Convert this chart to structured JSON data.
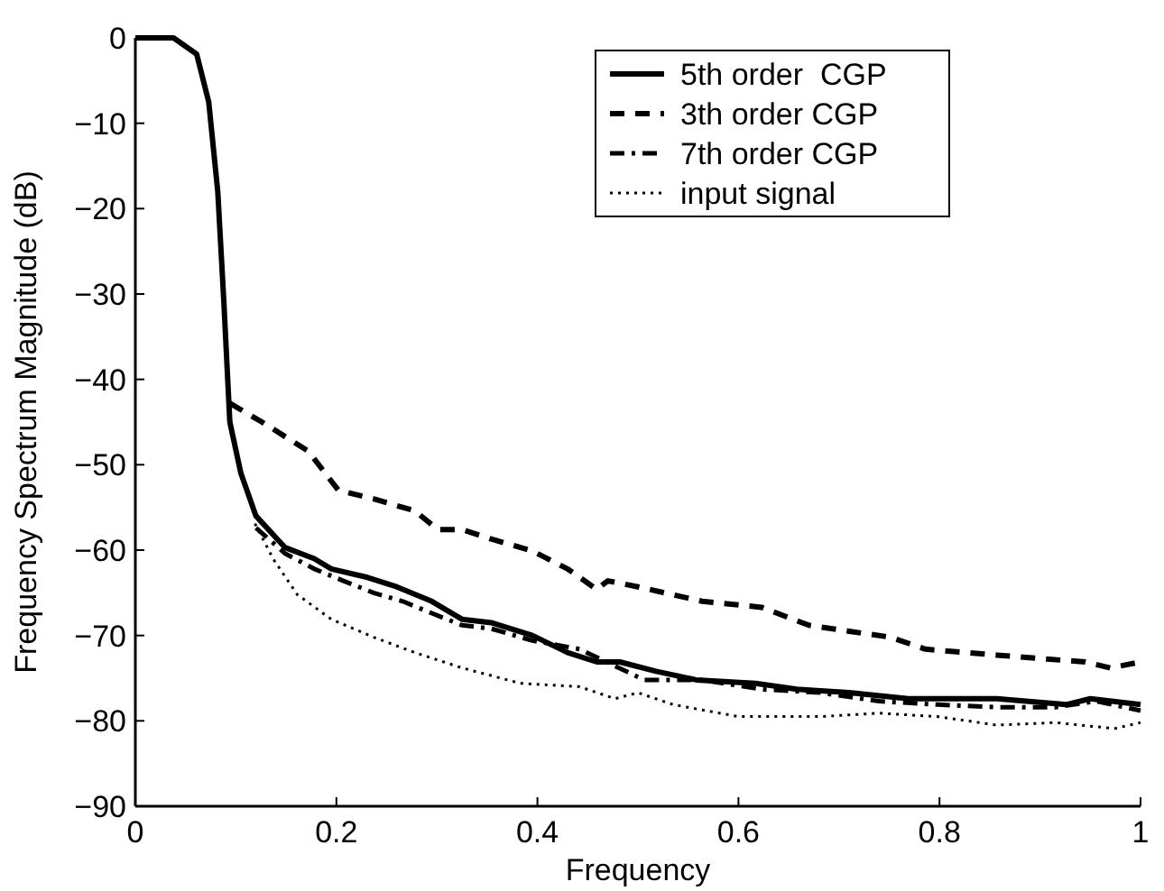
{
  "chart_data": {
    "type": "line",
    "xlabel": "Frequency",
    "ylabel": "Frequency Spectrum Magnitude (dB)",
    "xlim": [
      0,
      1
    ],
    "ylim": [
      -90,
      0
    ],
    "xticks": [
      0,
      0.2,
      0.4,
      0.6,
      0.8,
      1
    ],
    "yticks": [
      -90,
      -80,
      -70,
      -60,
      -50,
      -40,
      -30,
      -20,
      -10,
      0
    ],
    "grid": false,
    "legend": "top right",
    "series": [
      {
        "name": "5th order  CGP",
        "color": "#000000",
        "line_style": "solid",
        "x": [
          0,
          0.038,
          0.061,
          0.073,
          0.082,
          0.088,
          0.094,
          0.105,
          0.12,
          0.149,
          0.178,
          0.195,
          0.231,
          0.26,
          0.295,
          0.325,
          0.354,
          0.395,
          0.43,
          0.459,
          0.482,
          0.518,
          0.558,
          0.617,
          0.658,
          0.71,
          0.769,
          0.857,
          0.926,
          0.95,
          1
        ],
        "values": [
          0,
          0,
          -1.9,
          -7.5,
          -18,
          -30.8,
          -45,
          -51,
          -56,
          -59.7,
          -61,
          -62.2,
          -63.2,
          -64.3,
          -66,
          -68.1,
          -68.5,
          -70,
          -72,
          -73.1,
          -73.1,
          -74.2,
          -75.2,
          -75.6,
          -76.3,
          -76.7,
          -77.4,
          -77.4,
          -78.1,
          -77.4,
          -78.1
        ]
      },
      {
        "name": "3th order CGP",
        "color": "#000000",
        "line_style": "dashed",
        "x": [
          0.094,
          0.126,
          0.172,
          0.202,
          0.237,
          0.278,
          0.301,
          0.325,
          0.354,
          0.395,
          0.43,
          0.459,
          0.47,
          0.5,
          0.564,
          0.623,
          0.67,
          0.71,
          0.751,
          0.786,
          0.857,
          0.945,
          0.97,
          1
        ],
        "values": [
          -42.8,
          -45,
          -48.4,
          -53,
          -54,
          -55.4,
          -57.6,
          -57.6,
          -58.7,
          -60.1,
          -62.2,
          -64.6,
          -63.6,
          -64.3,
          -66,
          -66.7,
          -68.8,
          -69.5,
          -70.2,
          -71.6,
          -72.3,
          -73.1,
          -73.8,
          -73.1
        ]
      },
      {
        "name": "7th order CGP",
        "color": "#000000",
        "line_style": "dashdot",
        "x": [
          0.12,
          0.149,
          0.178,
          0.207,
          0.237,
          0.266,
          0.295,
          0.325,
          0.354,
          0.395,
          0.442,
          0.506,
          0.564,
          0.623,
          0.681,
          0.74,
          0.798,
          0.857,
          0.915,
          0.956,
          1
        ],
        "values": [
          -57.4,
          -60.4,
          -62.2,
          -63.6,
          -65,
          -66,
          -67.4,
          -68.8,
          -69.2,
          -70.6,
          -71.6,
          -75.2,
          -75.2,
          -76.3,
          -76.7,
          -77.7,
          -78.1,
          -78.4,
          -78.4,
          -77.7,
          -78.8
        ]
      },
      {
        "name": "input signal",
        "color": "#000000",
        "line_style": "dotted",
        "x": [
          0.119,
          0.137,
          0.161,
          0.195,
          0.237,
          0.278,
          0.325,
          0.383,
          0.442,
          0.477,
          0.5,
          0.535,
          0.6,
          0.681,
          0.74,
          0.798,
          0.857,
          0.915,
          0.974,
          1
        ],
        "values": [
          -56.9,
          -61,
          -65.2,
          -68.1,
          -70.2,
          -72,
          -73.8,
          -75.6,
          -76,
          -77.4,
          -76.7,
          -78.1,
          -79.5,
          -79.5,
          -79.1,
          -79.5,
          -80.5,
          -80.2,
          -80.9,
          -80.2
        ]
      }
    ]
  }
}
